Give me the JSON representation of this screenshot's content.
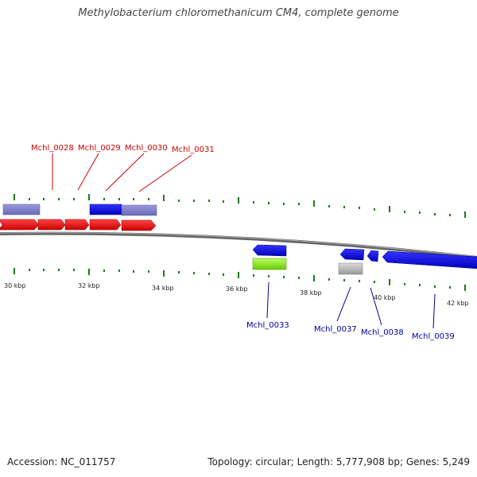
{
  "title": "Methylobacterium chloromethanicum CM4, complete genome",
  "footer": {
    "accession": "Accession: NC_011757",
    "stats": "Topology: circular; Length: 5,777,908 bp; Genes: 5,249"
  },
  "scale_ticks": [
    "30 kbp",
    "32 kbp",
    "34 kbp",
    "36 kbp",
    "38 kbp",
    "40 kbp",
    "42 kbp"
  ],
  "gene_labels_top": [
    "Mchl_0028",
    "Mchl_0029",
    "Mchl_0030",
    "Mchl_0031"
  ],
  "gene_labels_bottom": [
    "Mchl_0033",
    "Mchl_0037",
    "Mchl_0038",
    "Mchl_0039"
  ],
  "colors": {
    "label_top": "#cc0000",
    "label_bottom": "#000099",
    "forward_gene": "#ff0000",
    "reverse_gene": "#0000ff",
    "lavender_feature": "#7f7fcc",
    "green_feature": "#99ff33",
    "gray_feature": "#c0c0c0",
    "ticks": "#1a7a1a",
    "backbone": "#777777"
  }
}
